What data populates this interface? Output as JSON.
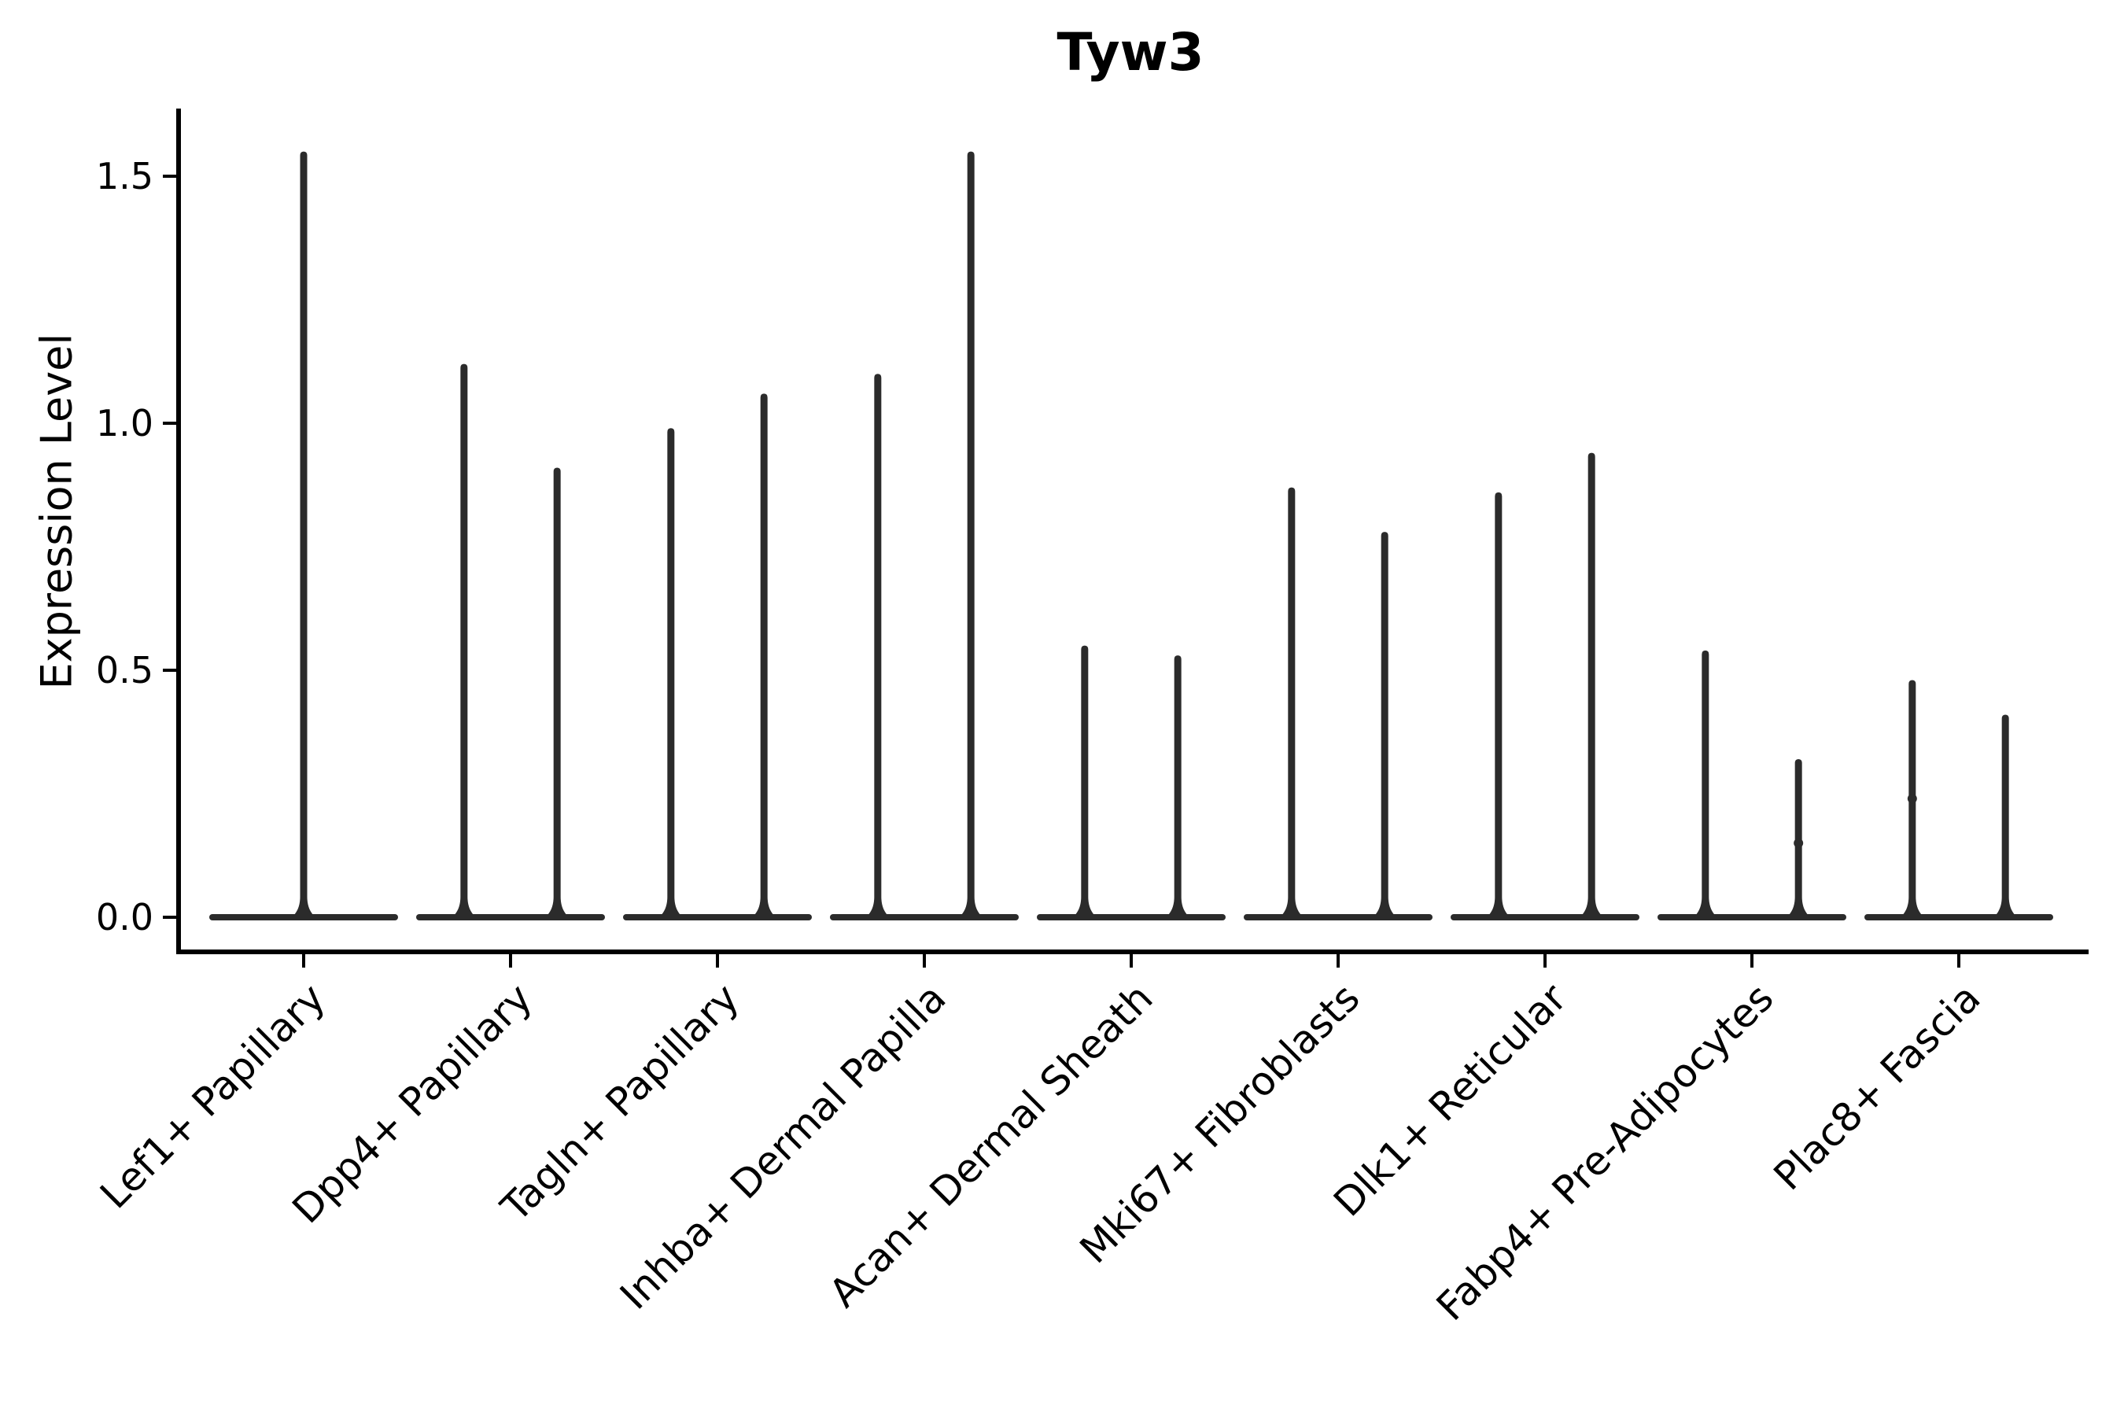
{
  "page": {
    "background": "#ffffff"
  },
  "chart_data": {
    "type": "violin",
    "title": "Tyw3",
    "ylabel": "Expression Level",
    "xlabel": "",
    "ytick_labels": [
      "0.0",
      "0.5",
      "1.0",
      "1.5"
    ],
    "ytick_values": [
      0.0,
      0.5,
      1.0,
      1.5
    ],
    "ylim": [
      -0.07,
      1.64
    ],
    "grid": false,
    "legend": false,
    "colors": {
      "violin": "#2b2b2b",
      "axis": "#000000",
      "text": "#000000",
      "background": "#ffffff"
    },
    "categories": [
      "Lef1+ Papillary",
      "Dpp4+ Papillary",
      "Tagln+ Papillary",
      "Inhba+ Dermal Papilla",
      "Acan+ Dermal Sheath",
      "Mki67+ Fibroblasts",
      "Dlk1+ Reticular",
      "Fabp4+ Pre-Adipocytes",
      "Plac8+ Fascia"
    ],
    "groups": [
      {
        "category": "Lef1+ Papillary",
        "violin_maxima": [
          1.55
        ],
        "dots": []
      },
      {
        "category": "Dpp4+ Papillary",
        "violin_maxima": [
          1.12,
          0.91
        ],
        "dots": []
      },
      {
        "category": "Tagln+ Papillary",
        "violin_maxima": [
          0.99,
          1.06
        ],
        "dots": []
      },
      {
        "category": "Inhba+ Dermal Papilla",
        "violin_maxima": [
          1.1,
          1.55
        ],
        "dots": []
      },
      {
        "category": "Acan+ Dermal Sheath",
        "violin_maxima": [
          0.55,
          0.53
        ],
        "dots": []
      },
      {
        "category": "Mki67+ Fibroblasts",
        "violin_maxima": [
          0.87,
          0.78
        ],
        "dots": []
      },
      {
        "category": "Dlk1+ Reticular",
        "violin_maxima": [
          0.86,
          0.94
        ],
        "dots": []
      },
      {
        "category": "Fabp4+ Pre-Adipocytes",
        "violin_maxima": [
          0.54,
          0.32
        ],
        "dots": [
          [
            1,
            0.15
          ]
        ]
      },
      {
        "category": "Plac8+ Fascia",
        "violin_maxima": [
          0.48,
          0.41
        ],
        "dots": [
          [
            0,
            0.24
          ]
        ]
      }
    ],
    "shape_note": "Each violin: wide flat density bar at expression 0 with a thin spike rising to the listed maximum."
  }
}
